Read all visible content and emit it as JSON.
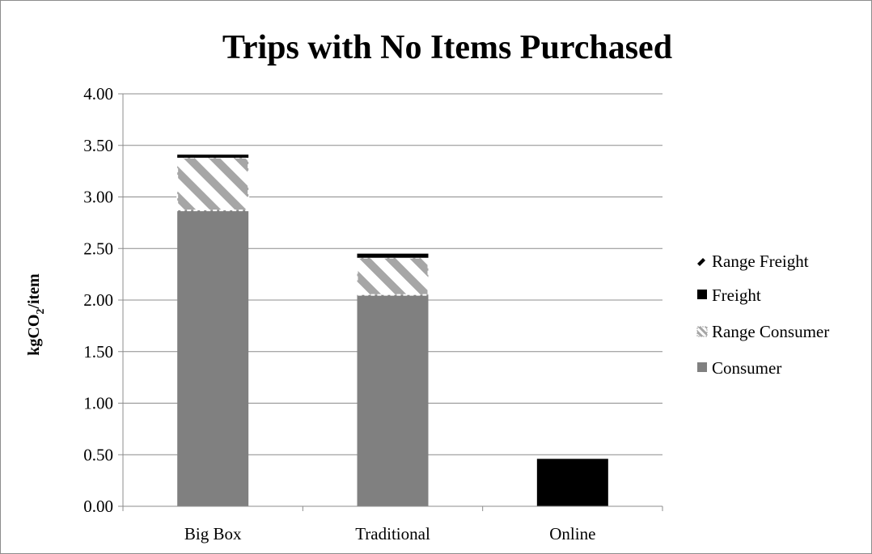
{
  "chart_data": {
    "type": "bar",
    "stacked": true,
    "title": "Trips with No Items Purchased",
    "ylabel_main": "kgCO",
    "ylabel_sub": "2",
    "ylabel_rest": "/item",
    "xlabel": "",
    "categories": [
      "Big Box",
      "Traditional",
      "Online"
    ],
    "ylim": [
      0,
      4
    ],
    "yticks": [
      "0.00",
      "0.50",
      "1.00",
      "1.50",
      "2.00",
      "2.50",
      "3.00",
      "3.50",
      "4.00"
    ],
    "ytick_values": [
      0,
      0.5,
      1,
      1.5,
      2,
      2.5,
      3,
      3.5,
      4
    ],
    "grid": true,
    "legend_position": "right",
    "series": [
      {
        "name": "Consumer",
        "values": [
          2.87,
          2.05,
          0
        ],
        "color": "#808080",
        "pattern": "solid"
      },
      {
        "name": "Range Consumer",
        "values": [
          0.51,
          0.36,
          0
        ],
        "color": "#a6a6a6",
        "pattern": "hatched"
      },
      {
        "name": "Freight",
        "values": [
          0,
          0,
          0.46
        ],
        "color": "#000000",
        "pattern": "solid"
      },
      {
        "name": "Range Freight",
        "values": [
          0.03,
          0.04,
          0
        ],
        "color": "#000000",
        "pattern": "solid"
      }
    ]
  },
  "legend": {
    "items": [
      "Range Freight",
      "Freight",
      "Range Consumer",
      "Consumer"
    ]
  }
}
